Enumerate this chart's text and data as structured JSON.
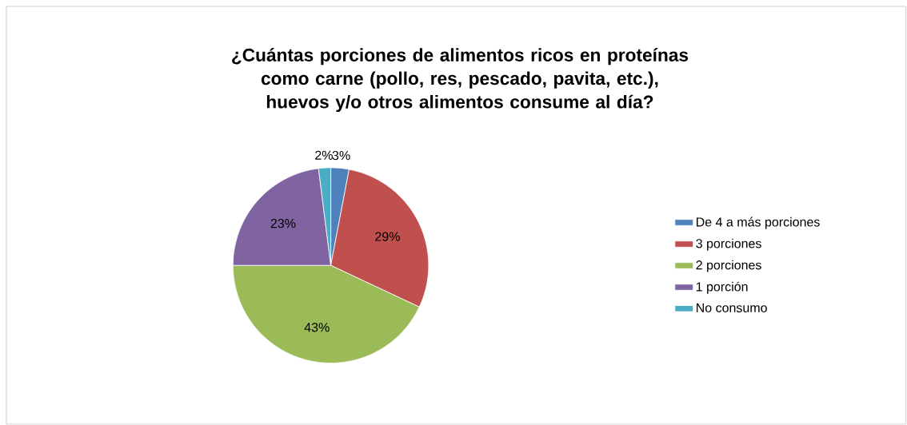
{
  "chart_data": {
    "type": "pie",
    "title": "¿Cuántas porciones de alimentos ricos en proteínas como carne (pollo, res, pescado, pavita, etc.), huevos y/o otros alimentos consume al día?",
    "categories": [
      "De 4 a más porciones",
      "3 porciones",
      "2 porciones",
      "1 porción",
      "No consumo"
    ],
    "values": [
      3,
      29,
      43,
      23,
      2
    ],
    "value_labels": [
      "3%",
      "29%",
      "43%",
      "23%",
      "2%"
    ],
    "colors": [
      "#4f81bd",
      "#c0504d",
      "#9bbb59",
      "#8064a2",
      "#4bacc6"
    ],
    "legend": "right"
  }
}
